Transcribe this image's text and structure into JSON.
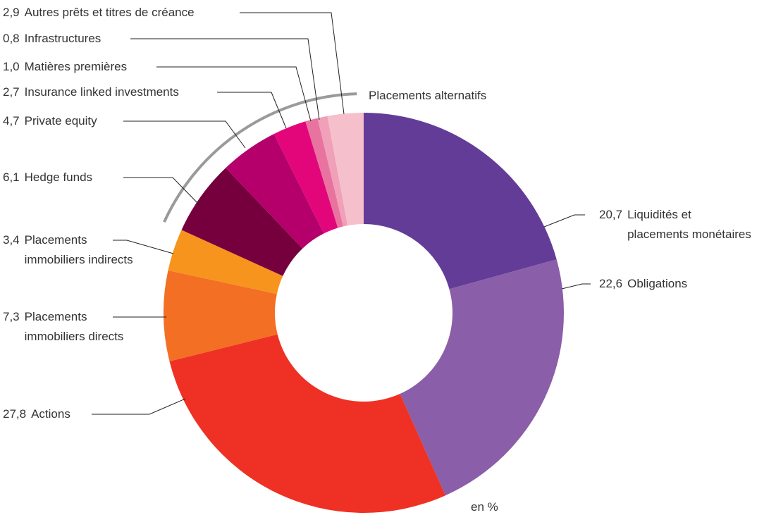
{
  "chart_data": {
    "type": "pie",
    "donut": true,
    "categories": [
      "Liquidités et placements monétaires",
      "Obligations",
      "Actions",
      "Placements immobiliers directs",
      "Placements immobiliers indirects",
      "Hedge funds",
      "Private equity",
      "Insurance linked investments",
      "Matières premières",
      "Infrastructures",
      "Autres prêts et titres de créance"
    ],
    "values": [
      20.7,
      22.6,
      27.8,
      7.3,
      3.4,
      6.1,
      4.7,
      2.7,
      1.0,
      0.8,
      2.9
    ],
    "value_labels": [
      "20,7",
      "22,6",
      "27,8",
      "7,3",
      "3,4",
      "6,1",
      "4,7",
      "2,7",
      "1,0",
      "0,8",
      "2,9"
    ],
    "colors": [
      "#633c97",
      "#8a5ea8",
      "#ee3124",
      "#f36f24",
      "#f7941d",
      "#76003d",
      "#b5006b",
      "#e2067a",
      "#e8739e",
      "#f0a0b8",
      "#f5c0cc"
    ],
    "group_label": "Placements alternatifs",
    "unit_label": "en %"
  }
}
